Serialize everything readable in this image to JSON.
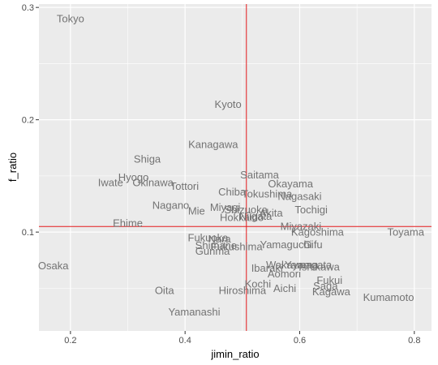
{
  "chart_data": {
    "type": "scatter",
    "xlabel": "jimin_ratio",
    "ylabel": "f_ratio",
    "xlim": [
      0.145,
      0.83
    ],
    "ylim": [
      0.012,
      0.303
    ],
    "x_ticks": [
      0.2,
      0.4,
      0.6,
      0.8
    ],
    "y_ticks": [
      0.1,
      0.2,
      0.3
    ],
    "x_tick_labels": [
      "0.2",
      "0.4",
      "0.6",
      "0.8"
    ],
    "y_tick_labels": [
      "0.1",
      "0.2",
      "0.3"
    ],
    "grid": true,
    "panel_color": "#ebebeb",
    "text_color": "#737373",
    "reference_line_color": "#e41a1c",
    "reference_lines": {
      "x": 0.507,
      "y": 0.105
    },
    "points": [
      {
        "label": "Tokyo",
        "x": 0.2,
        "y": 0.29
      },
      {
        "label": "Kyoto",
        "x": 0.475,
        "y": 0.214
      },
      {
        "label": "Kanagawa",
        "x": 0.449,
        "y": 0.178
      },
      {
        "label": "Shiga",
        "x": 0.334,
        "y": 0.165
      },
      {
        "label": "Hyogo",
        "x": 0.31,
        "y": 0.149
      },
      {
        "label": "Iwate",
        "x": 0.27,
        "y": 0.144
      },
      {
        "label": "Okinawa",
        "x": 0.344,
        "y": 0.144
      },
      {
        "label": "Tottori",
        "x": 0.399,
        "y": 0.141
      },
      {
        "label": "Saitama",
        "x": 0.53,
        "y": 0.151
      },
      {
        "label": "Okayama",
        "x": 0.584,
        "y": 0.143
      },
      {
        "label": "Chiba",
        "x": 0.482,
        "y": 0.136
      },
      {
        "label": "Tokushima",
        "x": 0.543,
        "y": 0.134
      },
      {
        "label": "Nagasaki",
        "x": 0.6,
        "y": 0.132
      },
      {
        "label": "Nagano",
        "x": 0.375,
        "y": 0.124
      },
      {
        "label": "Mie",
        "x": 0.42,
        "y": 0.119
      },
      {
        "label": "Miyagi",
        "x": 0.47,
        "y": 0.122
      },
      {
        "label": "Shizuoka",
        "x": 0.506,
        "y": 0.12
      },
      {
        "label": "Akita",
        "x": 0.55,
        "y": 0.117
      },
      {
        "label": "Tochigi",
        "x": 0.62,
        "y": 0.12
      },
      {
        "label": "Hokkaido",
        "x": 0.499,
        "y": 0.113
      },
      {
        "label": "Niigata",
        "x": 0.523,
        "y": 0.114
      },
      {
        "label": "Ehime",
        "x": 0.3,
        "y": 0.108
      },
      {
        "label": "Miyazaki",
        "x": 0.602,
        "y": 0.105
      },
      {
        "label": "Kagoshima",
        "x": 0.631,
        "y": 0.1
      },
      {
        "label": "Toyama",
        "x": 0.785,
        "y": 0.1
      },
      {
        "label": "Fukuoka",
        "x": 0.44,
        "y": 0.095
      },
      {
        "label": "Nara",
        "x": 0.46,
        "y": 0.094
      },
      {
        "label": "Shimane",
        "x": 0.454,
        "y": 0.088
      },
      {
        "label": "Fukushima",
        "x": 0.49,
        "y": 0.087
      },
      {
        "label": "Gunma",
        "x": 0.448,
        "y": 0.083
      },
      {
        "label": "Yamaguchi",
        "x": 0.576,
        "y": 0.089
      },
      {
        "label": "Gifu",
        "x": 0.623,
        "y": 0.089
      },
      {
        "label": "Osaka",
        "x": 0.17,
        "y": 0.07
      },
      {
        "label": "Ibaraki",
        "x": 0.543,
        "y": 0.068
      },
      {
        "label": "Wakayama",
        "x": 0.587,
        "y": 0.071
      },
      {
        "label": "Yamagata",
        "x": 0.615,
        "y": 0.071
      },
      {
        "label": "Ishikawa",
        "x": 0.634,
        "y": 0.069
      },
      {
        "label": "Aomori",
        "x": 0.573,
        "y": 0.063
      },
      {
        "label": "Fukui",
        "x": 0.652,
        "y": 0.057
      },
      {
        "label": "Kochi",
        "x": 0.527,
        "y": 0.054
      },
      {
        "label": "Saga",
        "x": 0.645,
        "y": 0.052
      },
      {
        "label": "Oita",
        "x": 0.364,
        "y": 0.048
      },
      {
        "label": "Hiroshima",
        "x": 0.5,
        "y": 0.048
      },
      {
        "label": "Aichi",
        "x": 0.574,
        "y": 0.05
      },
      {
        "label": "Kagawa",
        "x": 0.655,
        "y": 0.047
      },
      {
        "label": "Kumamoto",
        "x": 0.755,
        "y": 0.042
      },
      {
        "label": "Yamanashi",
        "x": 0.416,
        "y": 0.029
      }
    ]
  }
}
